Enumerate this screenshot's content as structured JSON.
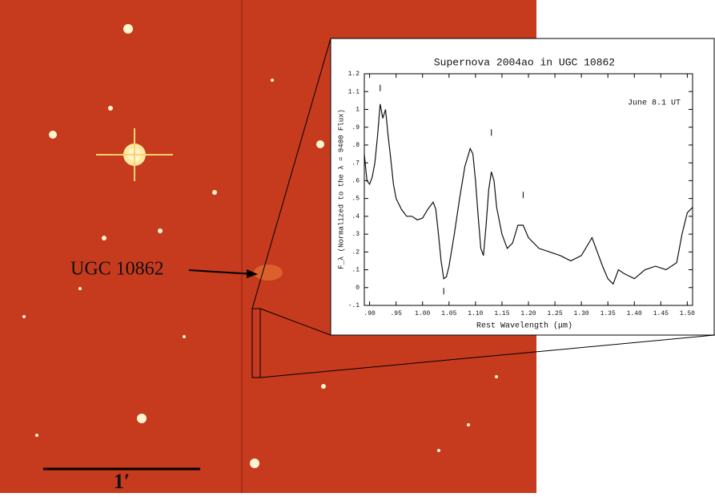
{
  "image": {
    "galaxy_label": "UGC 10862",
    "scale_label": "1′"
  },
  "chart_data": {
    "type": "line",
    "title": "Supernova 2004ao in UGC 10862",
    "annotation": "June 8.1 UT",
    "x_label": "Rest Wavelength (μm)",
    "y_label": "F_λ (Normalized to the λ = 9400 Flux)",
    "color": "#111111",
    "x": [
      0.89,
      0.895,
      0.9,
      0.905,
      0.91,
      0.915,
      0.92,
      0.925,
      0.93,
      0.935,
      0.94,
      0.945,
      0.95,
      0.96,
      0.97,
      0.98,
      0.99,
      1.0,
      1.01,
      1.02,
      1.025,
      1.03,
      1.035,
      1.04,
      1.045,
      1.05,
      1.06,
      1.07,
      1.08,
      1.09,
      1.095,
      1.1,
      1.105,
      1.11,
      1.115,
      1.12,
      1.125,
      1.13,
      1.135,
      1.14,
      1.15,
      1.16,
      1.17,
      1.18,
      1.19,
      1.2,
      1.22,
      1.24,
      1.26,
      1.28,
      1.3,
      1.32,
      1.33,
      1.34,
      1.35,
      1.36,
      1.37,
      1.38,
      1.4,
      1.42,
      1.44,
      1.46,
      1.48,
      1.49,
      1.5,
      1.51
    ],
    "values": [
      0.75,
      0.6,
      0.58,
      0.62,
      0.7,
      0.85,
      1.03,
      0.95,
      1.0,
      0.85,
      0.72,
      0.58,
      0.5,
      0.44,
      0.4,
      0.4,
      0.38,
      0.39,
      0.44,
      0.48,
      0.44,
      0.3,
      0.15,
      0.05,
      0.06,
      0.12,
      0.3,
      0.5,
      0.68,
      0.78,
      0.75,
      0.6,
      0.4,
      0.22,
      0.18,
      0.35,
      0.55,
      0.65,
      0.6,
      0.45,
      0.3,
      0.22,
      0.25,
      0.35,
      0.35,
      0.28,
      0.22,
      0.2,
      0.18,
      0.15,
      0.18,
      0.28,
      0.2,
      0.12,
      0.05,
      0.02,
      0.1,
      0.08,
      0.05,
      0.1,
      0.12,
      0.1,
      0.14,
      0.3,
      0.42,
      0.45
    ],
    "line_markers": {
      "x": [
        0.92,
        1.04,
        1.13,
        1.19
      ],
      "y": [
        1.12,
        -0.02,
        0.87,
        0.52
      ]
    },
    "xlim": [
      0.89,
      1.51
    ],
    "ylim": [
      -0.1,
      1.2
    ],
    "xticks": [
      {
        "value": 0.9,
        "label": ".90"
      },
      {
        "value": 0.95,
        "label": ".95"
      },
      {
        "value": 1.0,
        "label": "1.00"
      },
      {
        "value": 1.05,
        "label": "1.05"
      },
      {
        "value": 1.1,
        "label": "1.10"
      },
      {
        "value": 1.15,
        "label": "1.15"
      },
      {
        "value": 1.2,
        "label": "1.20"
      },
      {
        "value": 1.25,
        "label": "1.25"
      },
      {
        "value": 1.3,
        "label": "1.30"
      },
      {
        "value": 1.35,
        "label": "1.35"
      },
      {
        "value": 1.4,
        "label": "1.40"
      },
      {
        "value": 1.45,
        "label": "1.45"
      },
      {
        "value": 1.5,
        "label": "1.50"
      }
    ],
    "yticks": [
      {
        "value": -0.1,
        "label": "-.1"
      },
      0,
      {
        "value": 0.1,
        "label": ".1"
      },
      {
        "value": 0.2,
        "label": ".2"
      },
      {
        "value": 0.3,
        "label": ".3"
      },
      {
        "value": 0.4,
        "label": ".4"
      },
      {
        "value": 0.5,
        "label": ".5"
      },
      {
        "value": 0.6,
        "label": ".6"
      },
      {
        "value": 0.7,
        "label": ".7"
      },
      {
        "value": 0.8,
        "label": ".8"
      },
      {
        "value": 0.9,
        "label": ".9"
      },
      1,
      1.1,
      1.2
    ]
  }
}
